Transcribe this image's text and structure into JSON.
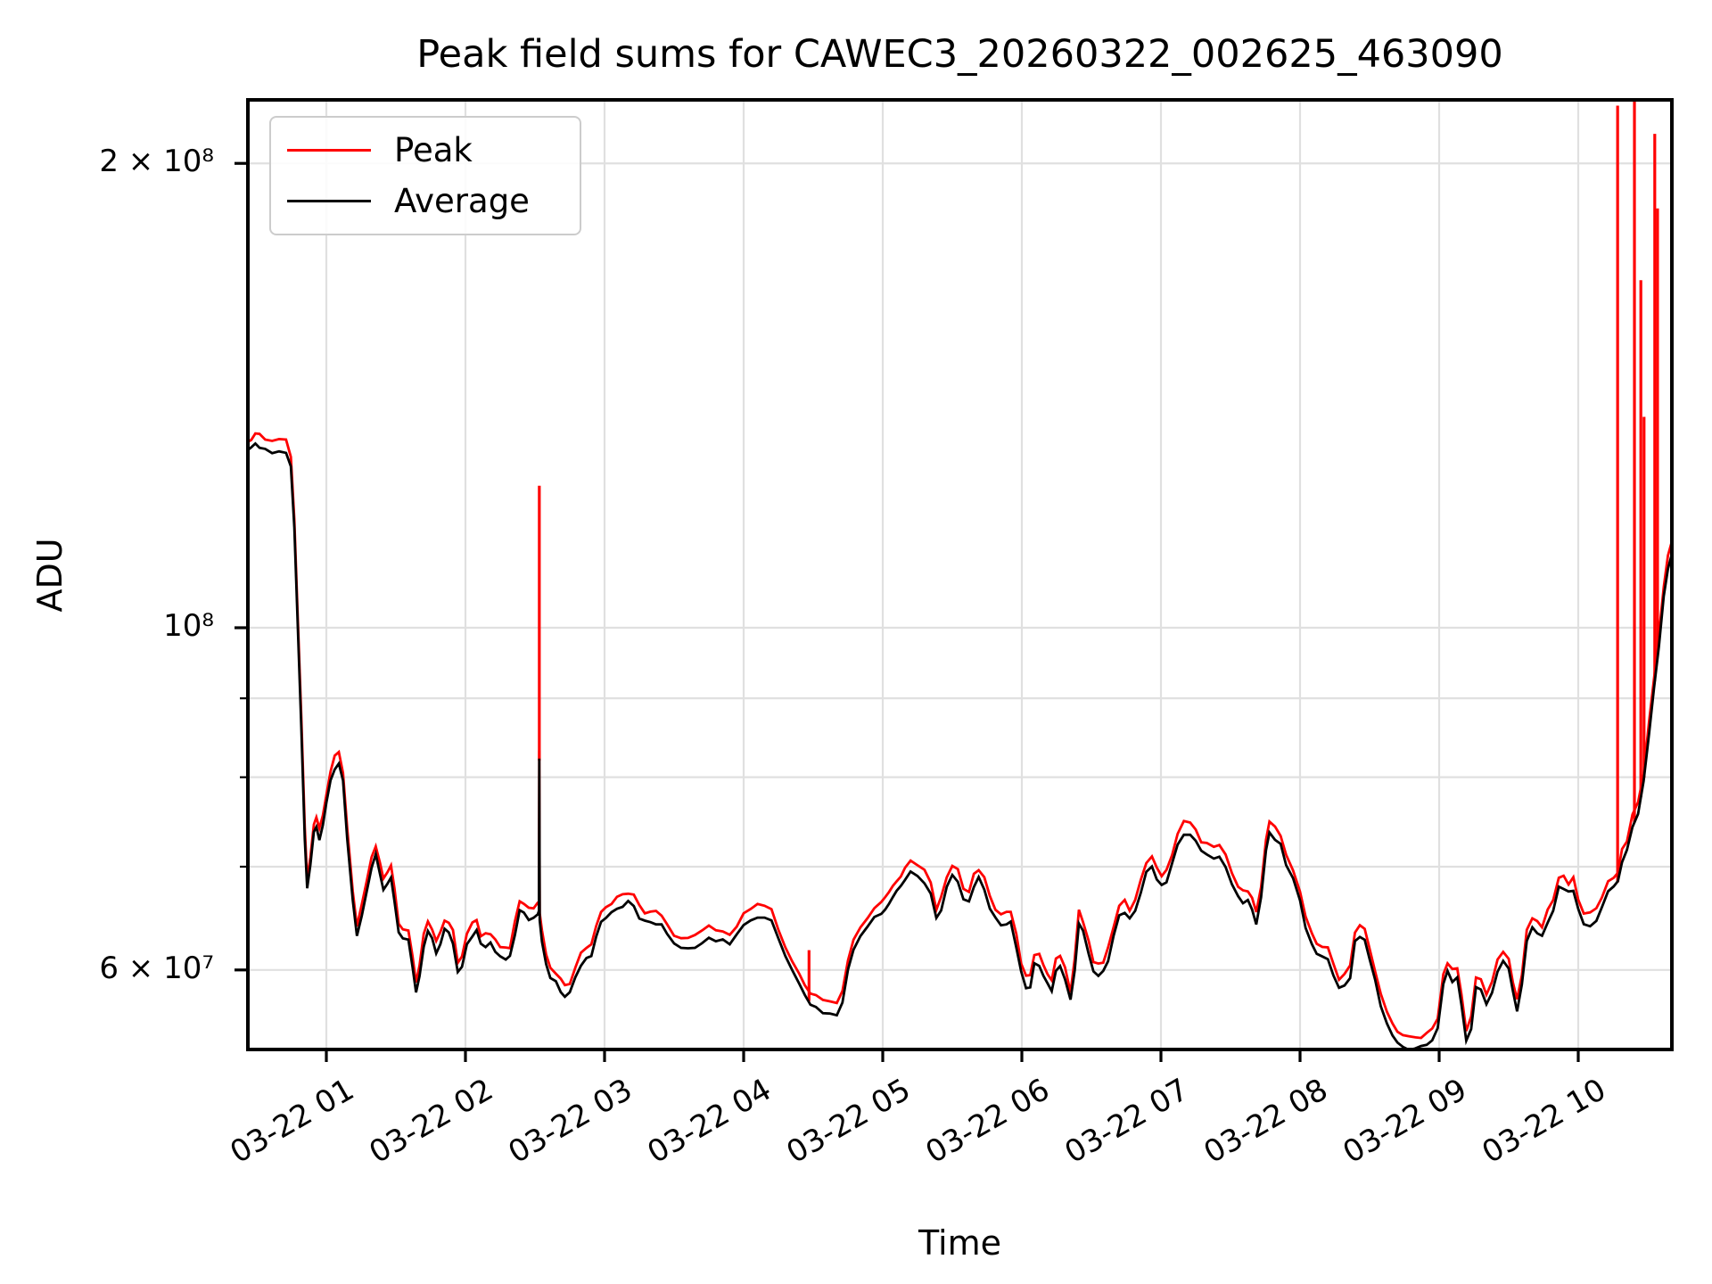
{
  "title": "Peak field sums for CAWEC3_20260322_002625_463090",
  "axes": {
    "xlabel": "Time",
    "ylabel": "ADU"
  },
  "legend": [
    {
      "label": "Peak",
      "color": "#ff0000"
    },
    {
      "label": "Average",
      "color": "#000000"
    }
  ],
  "style": {
    "grid_color": "#e0e0e0",
    "spine_color": "#000000",
    "peak_color": "#ff0000",
    "average_color": "#000000",
    "background": "#ffffff"
  },
  "chart_data": {
    "type": "line",
    "title": "Peak field sums for CAWEC3_20260322_002625_463090",
    "xlabel": "Time",
    "ylabel": "ADU",
    "y_scale": "log",
    "value_unit": "ADU x 1e7 (v=6.5 means 6.5e7 ADU)",
    "x_unit": "hours after 1970-? 03-22 00:00 (decimal hours)",
    "x_range_hours": [
      0.436,
      10.673
    ],
    "y_range_adu": [
      53000000.0,
      220000000.0
    ],
    "grid": true,
    "legend_position": "upper left",
    "x_ticks": [
      {
        "hour": 1,
        "label": "03-22 01"
      },
      {
        "hour": 2,
        "label": "03-22 02"
      },
      {
        "hour": 3,
        "label": "03-22 03"
      },
      {
        "hour": 4,
        "label": "03-22 04"
      },
      {
        "hour": 5,
        "label": "03-22 05"
      },
      {
        "hour": 6,
        "label": "03-22 06"
      },
      {
        "hour": 7,
        "label": "03-22 07"
      },
      {
        "hour": 8,
        "label": "03-22 08"
      },
      {
        "hour": 9,
        "label": "03-22 09"
      },
      {
        "hour": 10,
        "label": "03-22 10"
      }
    ],
    "y_ticks_labeled": [
      {
        "v_e7": 20,
        "label": "2 × 10⁸"
      },
      {
        "v_e7": 10,
        "label": "10⁸"
      },
      {
        "v_e7": 6,
        "label": "6 × 10⁷"
      }
    ],
    "y_ticks_minor_e7": [
      9,
      8,
      7
    ],
    "series_names": [
      "Peak",
      "Average"
    ],
    "peak_to_average_ratio": 1.016,
    "peak_spikes": [
      {
        "t": 2.531,
        "top_e7": 12.36
      },
      {
        "t": 4.47,
        "top_e7": 6.18
      },
      {
        "t": 10.283,
        "top_e7": 21.8
      },
      {
        "t": 10.404,
        "top_e7": 22.1
      },
      {
        "t": 10.45,
        "top_e7": 16.8
      },
      {
        "t": 10.473,
        "top_e7": 13.7
      },
      {
        "t": 10.55,
        "top_e7": 20.9
      },
      {
        "t": 10.57,
        "top_e7": 18.7
      }
    ],
    "average_points": [
      [
        0.436,
        13.02
      ],
      [
        0.46,
        13.08
      ],
      [
        0.49,
        13.16
      ],
      [
        0.52,
        13.1
      ],
      [
        0.56,
        13.04
      ],
      [
        0.61,
        13.0
      ],
      [
        0.66,
        13.02
      ],
      [
        0.71,
        13.0
      ],
      [
        0.745,
        12.7
      ],
      [
        0.77,
        11.6
      ],
      [
        0.795,
        10.0
      ],
      [
        0.82,
        8.6
      ],
      [
        0.845,
        7.3
      ],
      [
        0.862,
        6.78
      ],
      [
        0.885,
        7.0
      ],
      [
        0.91,
        7.35
      ],
      [
        0.928,
        7.42
      ],
      [
        0.95,
        7.28
      ],
      [
        0.975,
        7.45
      ],
      [
        1.0,
        7.7
      ],
      [
        1.03,
        7.95
      ],
      [
        1.06,
        8.1
      ],
      [
        1.09,
        8.17
      ],
      [
        1.12,
        7.95
      ],
      [
        1.15,
        7.3
      ],
      [
        1.19,
        6.65
      ],
      [
        1.22,
        6.3
      ],
      [
        1.255,
        6.5
      ],
      [
        1.29,
        6.75
      ],
      [
        1.325,
        7.0
      ],
      [
        1.355,
        7.12
      ],
      [
        1.385,
        6.92
      ],
      [
        1.41,
        6.78
      ],
      [
        1.44,
        6.83
      ],
      [
        1.465,
        6.9
      ],
      [
        1.49,
        6.65
      ],
      [
        1.52,
        6.35
      ],
      [
        1.55,
        6.29
      ],
      [
        1.59,
        6.26
      ],
      [
        1.62,
        6.02
      ],
      [
        1.645,
        5.8
      ],
      [
        1.67,
        5.95
      ],
      [
        1.7,
        6.22
      ],
      [
        1.73,
        6.35
      ],
      [
        1.76,
        6.28
      ],
      [
        1.79,
        6.16
      ],
      [
        1.82,
        6.25
      ],
      [
        1.85,
        6.37
      ],
      [
        1.88,
        6.33
      ],
      [
        1.91,
        6.25
      ],
      [
        1.945,
        5.97
      ],
      [
        1.975,
        6.03
      ],
      [
        2.01,
        6.22
      ],
      [
        2.05,
        6.33
      ],
      [
        2.08,
        6.38
      ],
      [
        2.11,
        6.22
      ],
      [
        2.145,
        6.23
      ],
      [
        2.18,
        6.25
      ],
      [
        2.215,
        6.16
      ],
      [
        2.25,
        6.11
      ],
      [
        2.29,
        6.1
      ],
      [
        2.32,
        6.12
      ],
      [
        2.355,
        6.32
      ],
      [
        2.39,
        6.55
      ],
      [
        2.42,
        6.52
      ],
      [
        2.455,
        6.46
      ],
      [
        2.49,
        6.49
      ],
      [
        2.52,
        6.52
      ],
      [
        2.528,
        6.55
      ],
      [
        2.531,
        8.2
      ],
      [
        2.534,
        6.45
      ],
      [
        2.55,
        6.25
      ],
      [
        2.58,
        6.05
      ],
      [
        2.61,
        5.94
      ],
      [
        2.65,
        5.88
      ],
      [
        2.685,
        5.82
      ],
      [
        2.715,
        5.77
      ],
      [
        2.75,
        5.8
      ],
      [
        2.79,
        5.92
      ],
      [
        2.83,
        6.05
      ],
      [
        2.87,
        6.11
      ],
      [
        2.905,
        6.13
      ],
      [
        2.94,
        6.3
      ],
      [
        2.975,
        6.44
      ],
      [
        3.01,
        6.49
      ],
      [
        3.05,
        6.53
      ],
      [
        3.09,
        6.57
      ],
      [
        3.13,
        6.61
      ],
      [
        3.17,
        6.64
      ],
      [
        3.21,
        6.59
      ],
      [
        3.25,
        6.5
      ],
      [
        3.29,
        6.45
      ],
      [
        3.33,
        6.43
      ],
      [
        3.37,
        6.44
      ],
      [
        3.41,
        6.42
      ],
      [
        3.45,
        6.32
      ],
      [
        3.5,
        6.23
      ],
      [
        3.55,
        6.2
      ],
      [
        3.6,
        6.19
      ],
      [
        3.65,
        6.21
      ],
      [
        3.7,
        6.26
      ],
      [
        3.75,
        6.29
      ],
      [
        3.8,
        6.28
      ],
      [
        3.85,
        6.26
      ],
      [
        3.9,
        6.23
      ],
      [
        3.95,
        6.32
      ],
      [
        4.0,
        6.41
      ],
      [
        4.05,
        6.47
      ],
      [
        4.1,
        6.5
      ],
      [
        4.15,
        6.49
      ],
      [
        4.2,
        6.47
      ],
      [
        4.25,
        6.28
      ],
      [
        4.3,
        6.11
      ],
      [
        4.35,
        6.0
      ],
      [
        4.4,
        5.86
      ],
      [
        4.44,
        5.78
      ],
      [
        4.48,
        5.71
      ],
      [
        4.52,
        5.67
      ],
      [
        4.57,
        5.64
      ],
      [
        4.62,
        5.63
      ],
      [
        4.67,
        5.61
      ],
      [
        4.71,
        5.72
      ],
      [
        4.75,
        6.0
      ],
      [
        4.79,
        6.18
      ],
      [
        4.84,
        6.3
      ],
      [
        4.89,
        6.4
      ],
      [
        4.94,
        6.47
      ],
      [
        4.99,
        6.54
      ],
      [
        5.045,
        6.63
      ],
      [
        5.1,
        6.75
      ],
      [
        5.16,
        6.87
      ],
      [
        5.2,
        6.94
      ],
      [
        5.25,
        6.91
      ],
      [
        5.3,
        6.84
      ],
      [
        5.345,
        6.74
      ],
      [
        5.385,
        6.46
      ],
      [
        5.42,
        6.58
      ],
      [
        5.46,
        6.78
      ],
      [
        5.5,
        6.9
      ],
      [
        5.54,
        6.87
      ],
      [
        5.58,
        6.66
      ],
      [
        5.62,
        6.63
      ],
      [
        5.655,
        6.8
      ],
      [
        5.69,
        6.88
      ],
      [
        5.73,
        6.76
      ],
      [
        5.77,
        6.59
      ],
      [
        5.81,
        6.48
      ],
      [
        5.85,
        6.41
      ],
      [
        5.89,
        6.43
      ],
      [
        5.92,
        6.45
      ],
      [
        5.96,
        6.22
      ],
      [
        5.995,
        5.99
      ],
      [
        6.03,
        5.84
      ],
      [
        6.06,
        5.86
      ],
      [
        6.09,
        6.06
      ],
      [
        6.125,
        6.05
      ],
      [
        6.155,
        5.95
      ],
      [
        6.185,
        5.87
      ],
      [
        6.215,
        5.81
      ],
      [
        6.245,
        6.0
      ],
      [
        6.275,
        6.04
      ],
      [
        6.31,
        5.93
      ],
      [
        6.35,
        5.73
      ],
      [
        6.38,
        5.99
      ],
      [
        6.41,
        6.44
      ],
      [
        6.44,
        6.36
      ],
      [
        6.48,
        6.16
      ],
      [
        6.515,
        5.99
      ],
      [
        6.55,
        5.95
      ],
      [
        6.585,
        5.97
      ],
      [
        6.62,
        6.1
      ],
      [
        6.66,
        6.3
      ],
      [
        6.7,
        6.5
      ],
      [
        6.74,
        6.56
      ],
      [
        6.775,
        6.47
      ],
      [
        6.815,
        6.56
      ],
      [
        6.855,
        6.74
      ],
      [
        6.895,
        6.93
      ],
      [
        6.935,
        7.01
      ],
      [
        6.97,
        6.88
      ],
      [
        7.005,
        6.79
      ],
      [
        7.04,
        6.84
      ],
      [
        7.08,
        7.02
      ],
      [
        7.12,
        7.24
      ],
      [
        7.165,
        7.36
      ],
      [
        7.21,
        7.34
      ],
      [
        7.25,
        7.28
      ],
      [
        7.29,
        7.17
      ],
      [
        7.33,
        7.12
      ],
      [
        7.38,
        7.1
      ],
      [
        7.42,
        7.12
      ],
      [
        7.465,
        7.01
      ],
      [
        7.51,
        6.83
      ],
      [
        7.555,
        6.68
      ],
      [
        7.59,
        6.63
      ],
      [
        7.625,
        6.66
      ],
      [
        7.655,
        6.56
      ],
      [
        7.685,
        6.42
      ],
      [
        7.72,
        6.68
      ],
      [
        7.755,
        7.18
      ],
      [
        7.78,
        7.37
      ],
      [
        7.82,
        7.31
      ],
      [
        7.86,
        7.22
      ],
      [
        7.9,
        7.01
      ],
      [
        7.95,
        6.88
      ],
      [
        8.0,
        6.63
      ],
      [
        8.04,
        6.4
      ],
      [
        8.085,
        6.23
      ],
      [
        8.12,
        6.13
      ],
      [
        8.16,
        6.12
      ],
      [
        8.2,
        6.11
      ],
      [
        8.24,
        5.95
      ],
      [
        8.28,
        5.83
      ],
      [
        8.32,
        5.87
      ],
      [
        8.36,
        5.94
      ],
      [
        8.395,
        6.27
      ],
      [
        8.43,
        6.3
      ],
      [
        8.465,
        6.27
      ],
      [
        8.5,
        6.1
      ],
      [
        8.54,
        5.89
      ],
      [
        8.58,
        5.7
      ],
      [
        8.625,
        5.54
      ],
      [
        8.665,
        5.45
      ],
      [
        8.7,
        5.39
      ],
      [
        8.74,
        5.36
      ],
      [
        8.785,
        5.34
      ],
      [
        8.83,
        5.34
      ],
      [
        8.87,
        5.35
      ],
      [
        8.91,
        5.37
      ],
      [
        8.95,
        5.4
      ],
      [
        8.99,
        5.5
      ],
      [
        9.03,
        5.88
      ],
      [
        9.06,
        5.97
      ],
      [
        9.095,
        5.9
      ],
      [
        9.13,
        5.94
      ],
      [
        9.16,
        5.7
      ],
      [
        9.195,
        5.4
      ],
      [
        9.23,
        5.5
      ],
      [
        9.265,
        5.84
      ],
      [
        9.3,
        5.82
      ],
      [
        9.34,
        5.69
      ],
      [
        9.38,
        5.81
      ],
      [
        9.42,
        5.99
      ],
      [
        9.46,
        6.07
      ],
      [
        9.5,
        6.01
      ],
      [
        9.53,
        5.81
      ],
      [
        9.56,
        5.65
      ],
      [
        9.595,
        5.88
      ],
      [
        9.63,
        6.26
      ],
      [
        9.67,
        6.4
      ],
      [
        9.705,
        6.35
      ],
      [
        9.74,
        6.29
      ],
      [
        9.78,
        6.46
      ],
      [
        9.82,
        6.56
      ],
      [
        9.86,
        6.77
      ],
      [
        9.895,
        6.79
      ],
      [
        9.93,
        6.74
      ],
      [
        9.965,
        6.76
      ],
      [
        10.0,
        6.56
      ],
      [
        10.04,
        6.43
      ],
      [
        10.085,
        6.41
      ],
      [
        10.13,
        6.46
      ],
      [
        10.17,
        6.58
      ],
      [
        10.215,
        6.74
      ],
      [
        10.255,
        6.8
      ],
      [
        10.285,
        6.84
      ],
      [
        10.315,
        7.05
      ],
      [
        10.35,
        7.18
      ],
      [
        10.39,
        7.42
      ],
      [
        10.43,
        7.58
      ],
      [
        10.47,
        7.95
      ],
      [
        10.51,
        8.55
      ],
      [
        10.545,
        9.15
      ],
      [
        10.58,
        9.75
      ],
      [
        10.615,
        10.45
      ],
      [
        10.645,
        10.95
      ],
      [
        10.673,
        11.2
      ]
    ]
  }
}
